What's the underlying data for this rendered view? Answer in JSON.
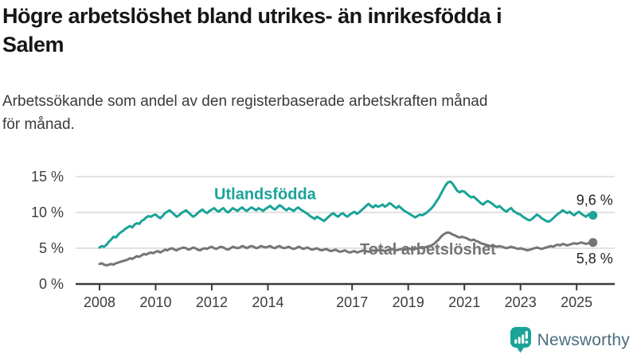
{
  "header": {
    "title_lines": [
      "Högre arbetslöshet bland utrikes- än inrikesfödda i",
      "Salem"
    ],
    "subtitle_lines": [
      "Arbetssökande som andel av den registerbaserade arbetskraften månad",
      "för månad."
    ]
  },
  "branding": {
    "wordmark": "Newsworthy",
    "icon": "newsworthy-bar-chart-speech-bubble-icon",
    "icon_color": "#1aa398",
    "wordmark_color": "#4d6d7d"
  },
  "chart_data": {
    "type": "line",
    "title": "Högre arbetslöshet bland utrikes- än inrikesfödda i Salem",
    "subtitle": "Arbetssökande som andel av den registerbaserade arbetskraften månad för månad.",
    "x_start": 2008.0,
    "x_step_months": 1,
    "xlim": [
      2007.15,
      2026.3
    ],
    "ylim": [
      0,
      16.89
    ],
    "x_ticks": [
      2008,
      2010,
      2012,
      2014,
      2017,
      2019,
      2021,
      2023,
      2025
    ],
    "y_ticks": [
      0,
      5,
      10,
      15
    ],
    "y_tick_suffix": " %",
    "grid": "horizontal",
    "legend_position": "inline-labels",
    "colors": {
      "grid": "#d9d9d9",
      "axis": "#3a3a3a"
    },
    "series": [
      {
        "name": "Utlandsfödda",
        "color": "#1aa398",
        "end_label": "9,6 %",
        "end_label_position": "above",
        "end_value": 9.6,
        "values": [
          5.1,
          5.3,
          5.2,
          5.5,
          5.9,
          6.2,
          6.6,
          6.5,
          6.9,
          7.2,
          7.4,
          7.7,
          7.9,
          8.1,
          7.9,
          8.3,
          8.5,
          8.4,
          8.8,
          9.0,
          9.3,
          9.5,
          9.4,
          9.6,
          9.7,
          9.4,
          9.2,
          9.5,
          9.9,
          10.1,
          10.3,
          10.0,
          9.7,
          9.4,
          9.6,
          9.9,
          10.1,
          10.3,
          10.0,
          9.7,
          9.4,
          9.6,
          9.9,
          10.2,
          10.4,
          10.1,
          9.9,
          10.2,
          10.4,
          10.6,
          10.3,
          10.1,
          10.4,
          10.6,
          10.2,
          10.0,
          10.3,
          10.6,
          10.4,
          10.2,
          10.5,
          10.7,
          10.4,
          10.2,
          10.5,
          10.7,
          10.5,
          10.3,
          10.6,
          10.4,
          10.2,
          10.5,
          10.7,
          10.9,
          10.6,
          10.4,
          10.7,
          11.0,
          10.8,
          10.5,
          10.3,
          10.6,
          10.4,
          10.2,
          10.5,
          10.7,
          10.4,
          10.2,
          10.0,
          9.8,
          9.5,
          9.3,
          9.1,
          9.4,
          9.2,
          9.0,
          8.8,
          9.1,
          9.4,
          9.7,
          9.9,
          9.6,
          9.4,
          9.7,
          9.9,
          9.6,
          9.4,
          9.7,
          9.9,
          10.1,
          9.8,
          10.0,
          10.3,
          10.6,
          10.9,
          11.2,
          10.9,
          10.7,
          11.0,
          10.8,
          10.9,
          11.1,
          10.8,
          11.0,
          11.3,
          11.1,
          10.8,
          10.6,
          10.9,
          10.6,
          10.3,
          10.1,
          9.9,
          9.7,
          9.5,
          9.3,
          9.5,
          9.7,
          9.6,
          9.8,
          10.0,
          10.3,
          10.6,
          11.0,
          11.5,
          12.0,
          12.6,
          13.2,
          13.8,
          14.2,
          14.3,
          14.0,
          13.5,
          13.0,
          12.8,
          13.0,
          12.9,
          12.6,
          12.3,
          12.1,
          12.2,
          11.9,
          11.6,
          11.3,
          11.1,
          11.4,
          11.6,
          11.4,
          11.2,
          10.9,
          10.7,
          10.9,
          10.6,
          10.3,
          10.1,
          10.4,
          10.6,
          10.2,
          10.0,
          9.8,
          9.7,
          9.4,
          9.2,
          9.0,
          8.9,
          9.1,
          9.4,
          9.7,
          9.5,
          9.2,
          9.0,
          8.8,
          8.7,
          8.9,
          9.2,
          9.5,
          9.8,
          10.0,
          10.3,
          10.1,
          9.9,
          10.1,
          9.8,
          9.6,
          9.9,
          10.1,
          9.8,
          9.6,
          9.4,
          9.7,
          9.5,
          9.6
        ]
      },
      {
        "name": "Total arbetslöshet",
        "color": "#757575",
        "end_label": "5,8 %",
        "end_label_position": "below",
        "end_value": 5.8,
        "values": [
          2.8,
          2.9,
          2.7,
          2.6,
          2.7,
          2.8,
          2.7,
          2.9,
          3.0,
          3.1,
          3.2,
          3.3,
          3.4,
          3.6,
          3.5,
          3.7,
          3.9,
          3.8,
          4.0,
          4.2,
          4.1,
          4.3,
          4.4,
          4.3,
          4.5,
          4.6,
          4.4,
          4.6,
          4.8,
          4.7,
          4.9,
          5.0,
          4.8,
          4.7,
          4.9,
          5.0,
          5.1,
          5.0,
          4.8,
          4.9,
          5.1,
          5.0,
          4.8,
          4.7,
          4.9,
          5.0,
          4.9,
          5.1,
          5.2,
          5.0,
          4.9,
          5.1,
          5.2,
          5.1,
          4.9,
          4.8,
          5.0,
          5.2,
          5.1,
          5.0,
          5.1,
          5.3,
          5.2,
          5.0,
          5.2,
          5.3,
          5.2,
          5.0,
          5.1,
          5.3,
          5.2,
          5.1,
          5.2,
          5.3,
          5.1,
          5.0,
          5.2,
          5.3,
          5.1,
          5.0,
          5.1,
          5.2,
          5.0,
          4.9,
          5.0,
          5.2,
          5.1,
          4.9,
          5.0,
          5.1,
          4.9,
          4.8,
          4.9,
          5.0,
          4.8,
          4.7,
          4.8,
          4.9,
          4.7,
          4.6,
          4.7,
          4.8,
          4.6,
          4.5,
          4.6,
          4.7,
          4.5,
          4.4,
          4.5,
          4.6,
          4.4,
          4.5,
          4.6,
          4.7,
          4.6,
          4.5,
          4.6,
          4.7,
          4.6,
          4.7,
          4.8,
          4.7,
          4.6,
          4.7,
          4.8,
          4.9,
          4.8,
          4.7,
          4.8,
          4.9,
          4.8,
          4.9,
          5.0,
          4.9,
          4.8,
          4.9,
          5.0,
          5.1,
          5.0,
          5.1,
          5.2,
          5.3,
          5.4,
          5.6,
          5.9,
          6.2,
          6.6,
          6.9,
          7.1,
          7.2,
          7.1,
          6.9,
          6.8,
          6.6,
          6.5,
          6.6,
          6.5,
          6.4,
          6.2,
          6.1,
          6.2,
          6.0,
          5.9,
          5.7,
          5.6,
          5.5,
          5.4,
          5.3,
          5.4,
          5.3,
          5.2,
          5.3,
          5.2,
          5.1,
          5.0,
          5.1,
          5.2,
          5.1,
          5.0,
          4.9,
          5.0,
          4.9,
          4.8,
          4.7,
          4.8,
          4.9,
          5.0,
          5.1,
          5.0,
          4.9,
          5.0,
          5.1,
          5.2,
          5.3,
          5.2,
          5.4,
          5.5,
          5.4,
          5.6,
          5.5,
          5.4,
          5.5,
          5.6,
          5.7,
          5.6,
          5.7,
          5.8,
          5.7,
          5.6,
          5.7,
          5.8,
          5.8
        ]
      }
    ],
    "annotations": [
      {
        "text": "Utlandsfödda",
        "x": 2013.9,
        "y": 12.6,
        "color": "#1aa398"
      },
      {
        "text": "Total arbetslöshet",
        "x": 2019.7,
        "y": 4.9,
        "color": "#757575"
      }
    ]
  }
}
